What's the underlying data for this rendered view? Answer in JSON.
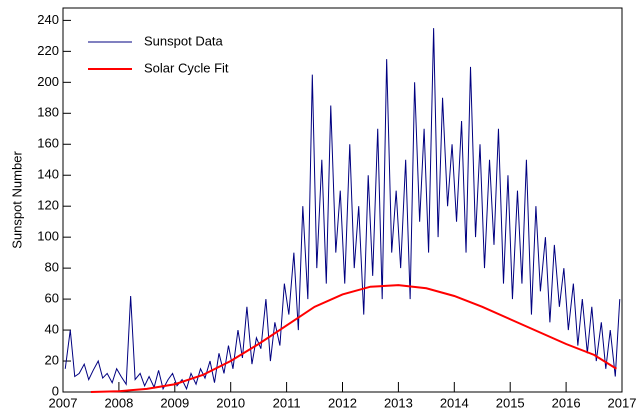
{
  "chart_data": {
    "type": "line",
    "ylabel": "Sunspot Number",
    "xlim": [
      2007,
      2017
    ],
    "ylim": [
      0,
      248
    ],
    "xticks": [
      2007,
      2008,
      2009,
      2010,
      2011,
      2012,
      2013,
      2014,
      2015,
      2016,
      2017
    ],
    "yticks": [
      0,
      20,
      40,
      60,
      80,
      100,
      120,
      140,
      160,
      180,
      200,
      220,
      240
    ],
    "legend": "top-left",
    "series": [
      {
        "name": "Sunspot Data",
        "color": "#000080",
        "x": [
          2007.04,
          2007.13,
          2007.21,
          2007.29,
          2007.38,
          2007.46,
          2007.54,
          2007.63,
          2007.71,
          2007.79,
          2007.88,
          2007.96,
          2008.04,
          2008.13,
          2008.21,
          2008.29,
          2008.38,
          2008.46,
          2008.54,
          2008.63,
          2008.71,
          2008.79,
          2008.88,
          2008.96,
          2009.04,
          2009.13,
          2009.21,
          2009.29,
          2009.38,
          2009.46,
          2009.54,
          2009.63,
          2009.71,
          2009.79,
          2009.88,
          2009.96,
          2010.04,
          2010.13,
          2010.21,
          2010.29,
          2010.38,
          2010.46,
          2010.54,
          2010.63,
          2010.71,
          2010.79,
          2010.88,
          2010.96,
          2011.04,
          2011.13,
          2011.21,
          2011.29,
          2011.38,
          2011.46,
          2011.54,
          2011.63,
          2011.71,
          2011.79,
          2011.88,
          2011.96,
          2012.04,
          2012.13,
          2012.21,
          2012.29,
          2012.38,
          2012.46,
          2012.54,
          2012.63,
          2012.71,
          2012.79,
          2012.88,
          2012.96,
          2013.04,
          2013.13,
          2013.21,
          2013.29,
          2013.38,
          2013.46,
          2013.54,
          2013.63,
          2013.71,
          2013.79,
          2013.88,
          2013.96,
          2014.04,
          2014.13,
          2014.21,
          2014.29,
          2014.38,
          2014.46,
          2014.54,
          2014.63,
          2014.71,
          2014.79,
          2014.88,
          2014.96,
          2015.04,
          2015.13,
          2015.21,
          2015.29,
          2015.38,
          2015.46,
          2015.54,
          2015.63,
          2015.71,
          2015.79,
          2015.88,
          2015.96,
          2016.04,
          2016.13,
          2016.21,
          2016.29,
          2016.38,
          2016.46,
          2016.54,
          2016.63,
          2016.71,
          2016.79,
          2016.88,
          2016.96
        ],
        "values": [
          15,
          40,
          10,
          12,
          18,
          8,
          14,
          20,
          9,
          12,
          6,
          15,
          10,
          5,
          62,
          8,
          12,
          4,
          10,
          3,
          14,
          2,
          8,
          12,
          4,
          8,
          2,
          12,
          5,
          15,
          9,
          20,
          6,
          25,
          12,
          30,
          15,
          40,
          22,
          55,
          18,
          35,
          28,
          60,
          20,
          45,
          30,
          70,
          50,
          90,
          40,
          120,
          60,
          205,
          80,
          150,
          70,
          185,
          90,
          130,
          70,
          160,
          80,
          120,
          50,
          140,
          75,
          170,
          60,
          215,
          90,
          130,
          80,
          150,
          60,
          200,
          110,
          170,
          90,
          235,
          100,
          190,
          120,
          160,
          110,
          175,
          90,
          210,
          100,
          160,
          80,
          150,
          95,
          170,
          70,
          140,
          60,
          130,
          70,
          150,
          50,
          120,
          65,
          100,
          45,
          95,
          55,
          80,
          40,
          70,
          30,
          60,
          25,
          55,
          20,
          45,
          15,
          40,
          10,
          60
        ]
      },
      {
        "name": "Solar Cycle Fit",
        "color": "#ff0000",
        "x": [
          2007.5,
          2008,
          2008.5,
          2009,
          2009.5,
          2010,
          2010.5,
          2011,
          2011.5,
          2012,
          2012.5,
          2013,
          2013.5,
          2014,
          2014.5,
          2015,
          2015.5,
          2016,
          2016.5,
          2016.9
        ],
        "values": [
          0,
          0.5,
          2,
          5,
          11,
          20,
          31,
          43,
          55,
          63,
          68,
          69,
          67,
          62,
          55,
          47,
          39,
          31,
          24,
          15
        ]
      }
    ]
  }
}
